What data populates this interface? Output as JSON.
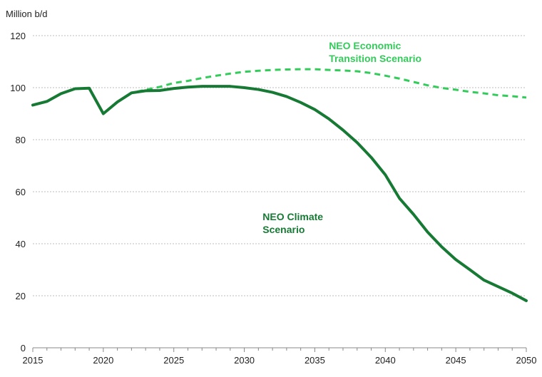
{
  "chart_data": {
    "type": "line",
    "title": "",
    "ylabel": "Million b/d",
    "xlabel": "",
    "xlim": [
      2015,
      2050
    ],
    "ylim": [
      0,
      120
    ],
    "x_ticks": [
      "2015",
      "2020",
      "2025",
      "2030",
      "2035",
      "2040",
      "2045",
      "2050"
    ],
    "y_ticks": [
      "0",
      "20",
      "40",
      "60",
      "80",
      "100",
      "120"
    ],
    "grid": "horizontal-dashed",
    "legend": "none",
    "x": [
      2015,
      2016,
      2017,
      2018,
      2019,
      2020,
      2021,
      2022,
      2023,
      2024,
      2025,
      2026,
      2027,
      2028,
      2029,
      2030,
      2031,
      2032,
      2033,
      2034,
      2035,
      2036,
      2037,
      2038,
      2039,
      2040,
      2041,
      2042,
      2043,
      2044,
      2045,
      2046,
      2047,
      2048,
      2049,
      2050
    ],
    "series": [
      {
        "name": "NEO Economic Transition Scenario",
        "label_lines": [
          "NEO Economic",
          "Transition Scenario"
        ],
        "color": "#33cc5a",
        "style": "dashed",
        "values": [
          93.3,
          94.7,
          97.7,
          99.6,
          99.8,
          90.0,
          94.5,
          98.0,
          99.2,
          100.3,
          101.8,
          102.6,
          103.7,
          104.6,
          105.4,
          106.1,
          106.5,
          106.8,
          107.0,
          107.1,
          107.1,
          106.8,
          106.6,
          106.3,
          105.6,
          104.6,
          103.5,
          102.2,
          100.9,
          99.9,
          99.2,
          98.4,
          97.8,
          97.1,
          96.7,
          96.2
        ]
      },
      {
        "name": "NEO Climate Scenario",
        "label_lines": [
          "NEO Climate",
          "Scenario"
        ],
        "color": "#177a34",
        "style": "solid",
        "values": [
          93.3,
          94.7,
          97.7,
          99.6,
          99.8,
          90.0,
          94.5,
          98.0,
          98.8,
          98.9,
          99.7,
          100.2,
          100.5,
          100.5,
          100.5,
          100.0,
          99.3,
          98.2,
          96.6,
          94.3,
          91.6,
          88.0,
          83.7,
          78.9,
          73.2,
          66.5,
          57.5,
          51.3,
          44.5,
          38.8,
          33.9,
          30.0,
          26.0,
          23.5,
          21.0,
          18.1
        ]
      }
    ]
  }
}
